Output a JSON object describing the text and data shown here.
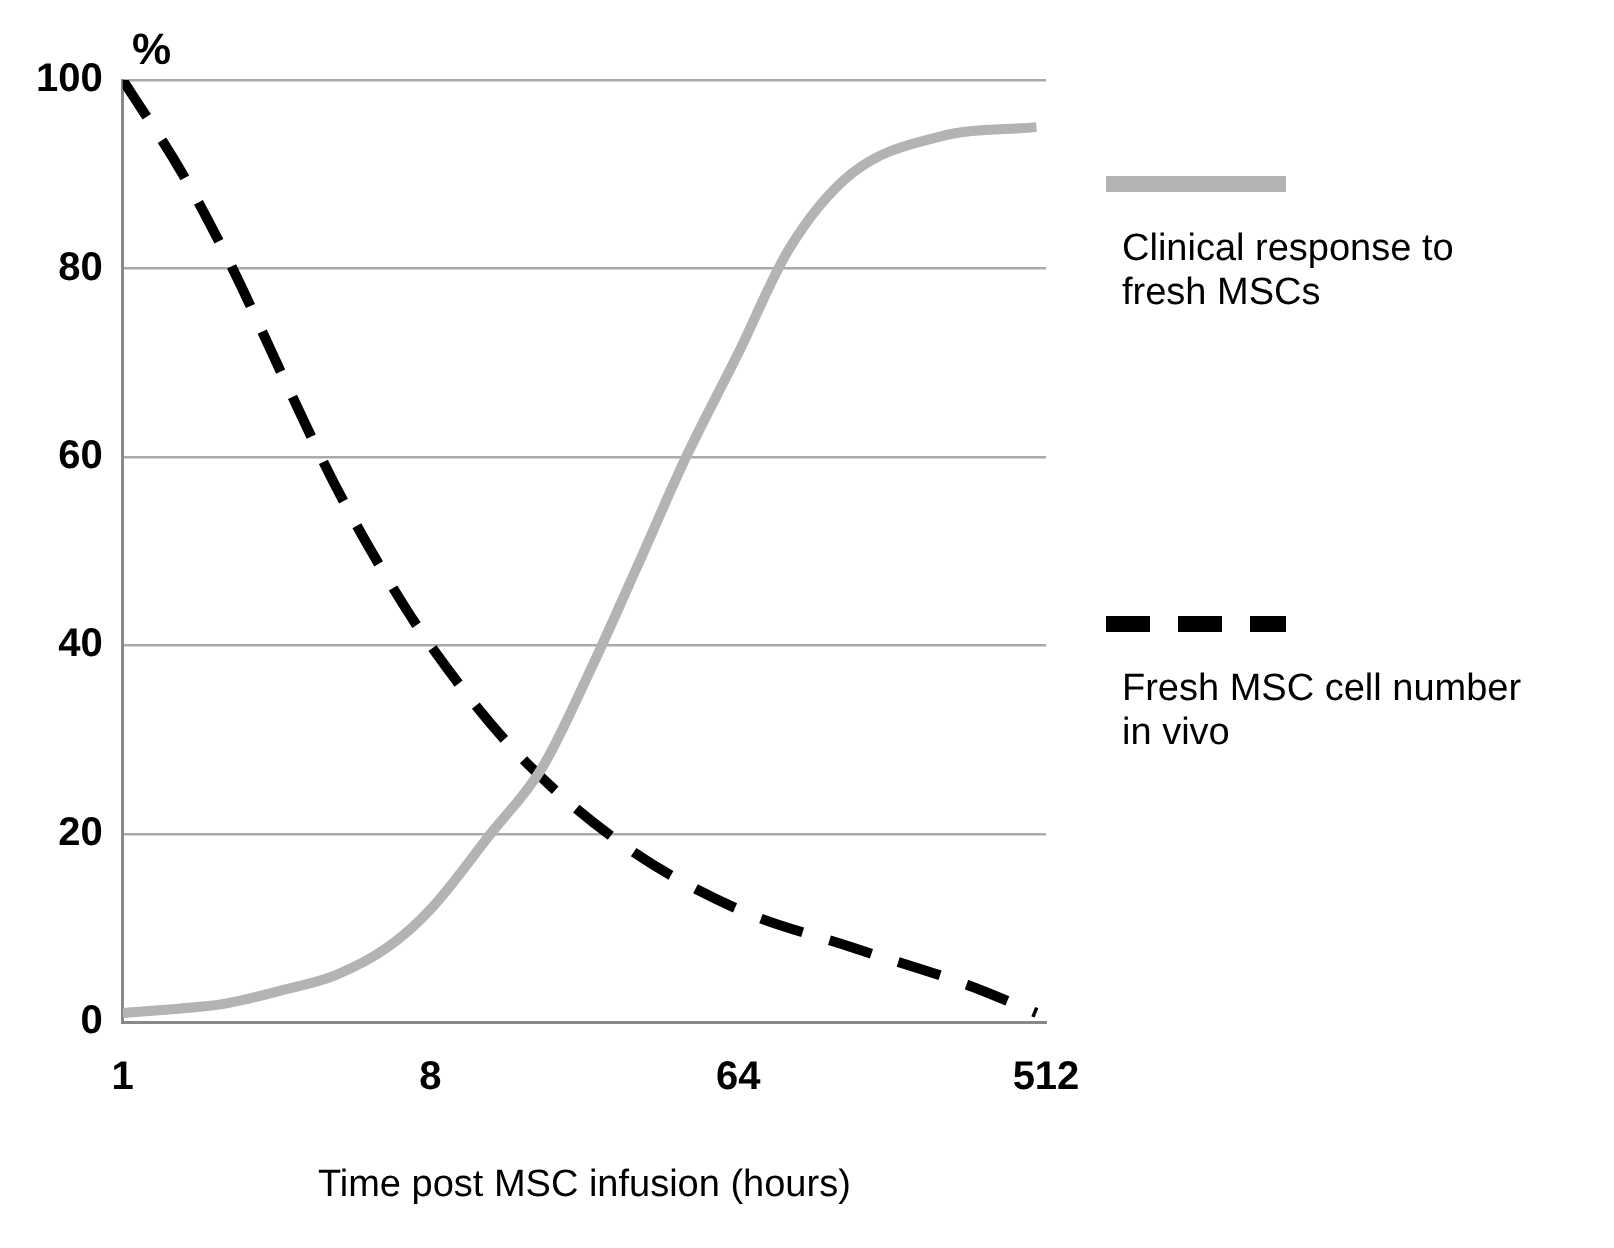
{
  "chart_data": {
    "type": "line",
    "xlabel": "Time post MSC infusion (hours)",
    "ylabel": "%",
    "log": "x",
    "xlim": [
      1,
      512
    ],
    "xticks": [
      1,
      8,
      64,
      512
    ],
    "ylim": [
      0,
      100
    ],
    "yticks": [
      0,
      20,
      40,
      60,
      80,
      100
    ],
    "grid": "y",
    "legend": "right",
    "marker": "none",
    "series": [
      {
        "name": "Clinical response to fresh MSCs",
        "color": "#b3b3b3",
        "line_style": "solid",
        "x": [
          1,
          1.5,
          2,
          3,
          4.2,
          6,
          8,
          12,
          17,
          24,
          32,
          45,
          64,
          90,
          137,
          250,
          480
        ],
        "values": [
          1,
          1.5,
          2,
          3.5,
          5,
          8,
          12,
          20,
          27,
          38,
          48,
          60,
          71,
          82,
          90,
          94,
          95
        ]
      },
      {
        "name": "Fresh MSC cell number in vivo",
        "color": "#000000",
        "line_style": "dashed",
        "x": [
          1,
          1.5,
          2.1,
          3,
          4.2,
          6,
          8,
          14,
          29,
          64,
          137,
          300,
          480
        ],
        "values": [
          100,
          90,
          80,
          68,
          57,
          47,
          40,
          29,
          19,
          12,
          8,
          4,
          1
        ]
      }
    ]
  }
}
